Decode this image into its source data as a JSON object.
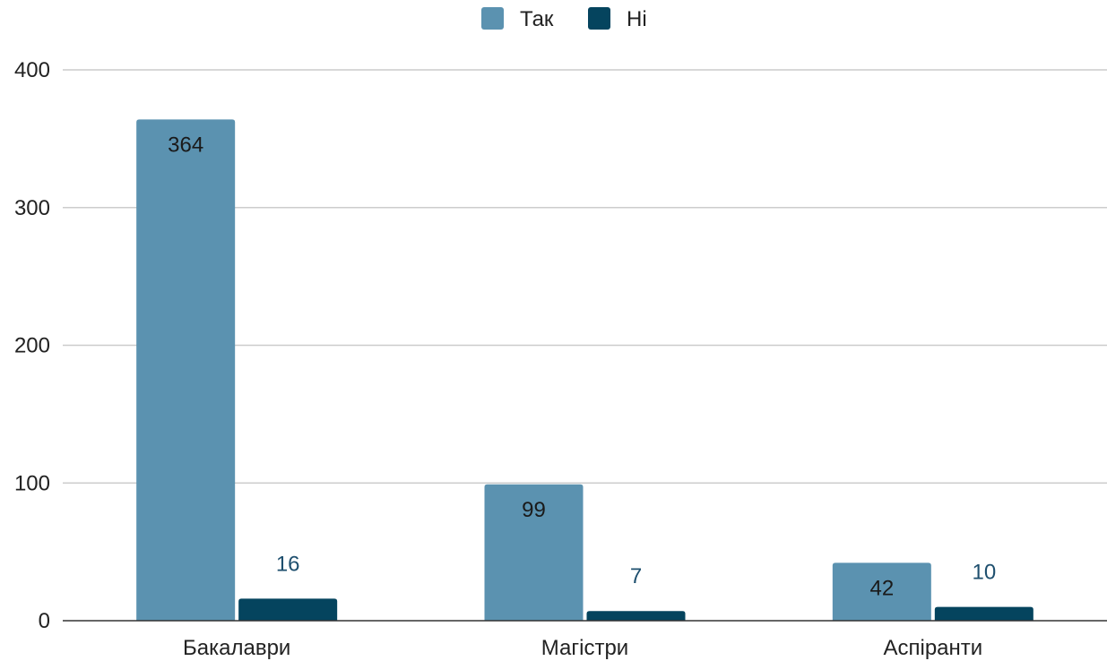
{
  "chart_data": {
    "type": "bar",
    "categories": [
      "Бакалаври",
      "Магістри",
      "Аспіранти"
    ],
    "series": [
      {
        "name": "Так",
        "values": [
          364,
          99,
          42
        ],
        "color": "#5b92b0",
        "label_color": "#1a1a1a",
        "label_position": "inside"
      },
      {
        "name": "Ні",
        "values": [
          16,
          7,
          10
        ],
        "color": "#05445e",
        "label_color": "#1e4f6e",
        "label_position": "above"
      }
    ],
    "ylim": [
      0,
      400
    ],
    "yticks": [
      0,
      100,
      200,
      300,
      400
    ],
    "grid": true,
    "legend_position": "top-center",
    "title": "",
    "xlabel": "",
    "ylabel": ""
  }
}
